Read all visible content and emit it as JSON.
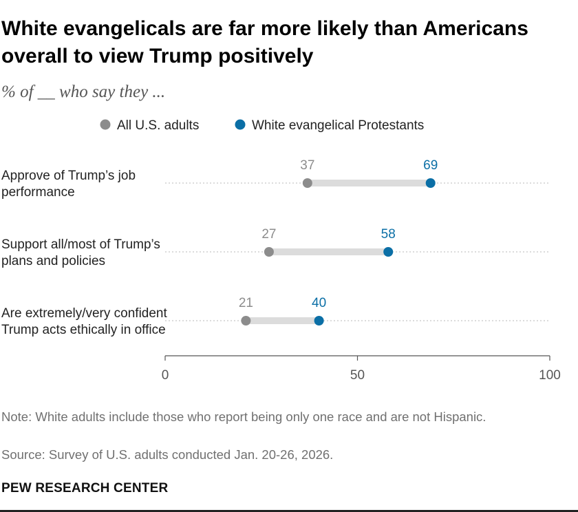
{
  "chart_data": {
    "type": "dot",
    "title": "White evangelicals are far more likely than Americans overall to view Trump positively",
    "subtitle": "% of __ who say they ...",
    "categories": [
      [
        "Approve of Trump’s job",
        "performance"
      ],
      [
        "Support all/most of Trump’s",
        "plans and policies"
      ],
      [
        "Are extremely/very confident",
        "Trump acts ethically in office"
      ]
    ],
    "series": [
      {
        "name": "All U.S. adults",
        "color": "#8c8c8c",
        "values": [
          37,
          27,
          21
        ]
      },
      {
        "name": "White evangelical Protestants",
        "color": "#0b6fa6",
        "values": [
          69,
          58,
          40
        ]
      }
    ],
    "xlim": [
      0,
      100
    ],
    "xticks": [
      "0",
      "50",
      "100"
    ],
    "legend_position": "top",
    "grid": false
  },
  "footer": {
    "note": "Note: White adults include those who report being only one race and are not Hispanic.",
    "source": "Source: Survey of U.S. adults conducted Jan. 20-26, 2026.",
    "brand": "PEW RESEARCH CENTER"
  }
}
